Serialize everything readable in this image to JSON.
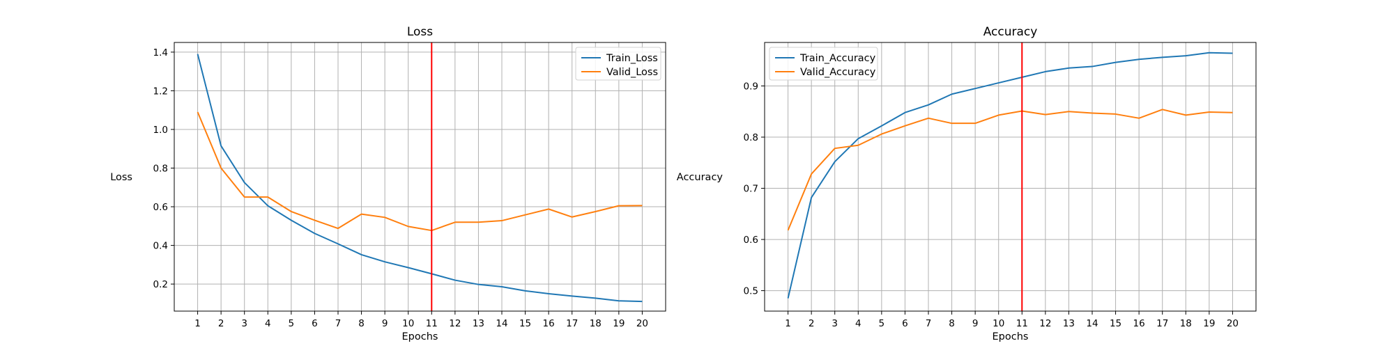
{
  "chart_data": [
    {
      "type": "line",
      "title": "Loss",
      "xlabel": "Epochs",
      "ylabel": "Loss",
      "x": [
        1,
        2,
        3,
        4,
        5,
        6,
        7,
        8,
        9,
        10,
        11,
        12,
        13,
        14,
        15,
        16,
        17,
        18,
        19,
        20
      ],
      "xlim": [
        0,
        21
      ],
      "ylim": [
        0.06,
        1.45
      ],
      "yticks": [
        0.2,
        0.4,
        0.6,
        0.8,
        1.0,
        1.2,
        1.4
      ],
      "ytick_labels": [
        "0.2",
        "0.4",
        "0.6",
        "0.8",
        "1.0",
        "1.2",
        "1.4"
      ],
      "grid": true,
      "legend_position": "top-right",
      "vline": {
        "x": 11,
        "color": "#ff0000"
      },
      "series": [
        {
          "name": "Train_Loss",
          "color": "#1f77b4",
          "values": [
            1.39,
            0.915,
            0.725,
            0.605,
            0.53,
            0.462,
            0.408,
            0.352,
            0.315,
            0.285,
            0.253,
            0.22,
            0.198,
            0.186,
            0.165,
            0.15,
            0.138,
            0.127,
            0.113,
            0.11
          ]
        },
        {
          "name": "Valid_Loss",
          "color": "#ff7f0e",
          "values": [
            1.09,
            0.8,
            0.65,
            0.65,
            0.575,
            0.53,
            0.488,
            0.562,
            0.545,
            0.498,
            0.477,
            0.52,
            0.52,
            0.528,
            0.558,
            0.588,
            0.547,
            0.575,
            0.605,
            0.606
          ]
        }
      ]
    },
    {
      "type": "line",
      "title": "Accuracy",
      "xlabel": "Epochs",
      "ylabel": "Accuracy",
      "x": [
        1,
        2,
        3,
        4,
        5,
        6,
        7,
        8,
        9,
        10,
        11,
        12,
        13,
        14,
        15,
        16,
        17,
        18,
        19,
        20
      ],
      "xlim": [
        0,
        21
      ],
      "ylim": [
        0.46,
        0.985
      ],
      "yticks": [
        0.5,
        0.6,
        0.7,
        0.8,
        0.9
      ],
      "ytick_labels": [
        "0.5",
        "0.6",
        "0.7",
        "0.8",
        "0.9"
      ],
      "grid": true,
      "legend_position": "top-left",
      "vline": {
        "x": 11,
        "color": "#ff0000"
      },
      "series": [
        {
          "name": "Train_Accuracy",
          "color": "#1f77b4",
          "values": [
            0.485,
            0.682,
            0.752,
            0.797,
            0.822,
            0.848,
            0.863,
            0.884,
            0.895,
            0.906,
            0.917,
            0.928,
            0.935,
            0.938,
            0.946,
            0.952,
            0.956,
            0.959,
            0.965,
            0.964
          ]
        },
        {
          "name": "Valid_Accuracy",
          "color": "#ff7f0e",
          "values": [
            0.618,
            0.728,
            0.778,
            0.784,
            0.806,
            0.822,
            0.837,
            0.827,
            0.827,
            0.843,
            0.851,
            0.844,
            0.85,
            0.847,
            0.845,
            0.837,
            0.854,
            0.843,
            0.849,
            0.848
          ]
        }
      ]
    }
  ]
}
